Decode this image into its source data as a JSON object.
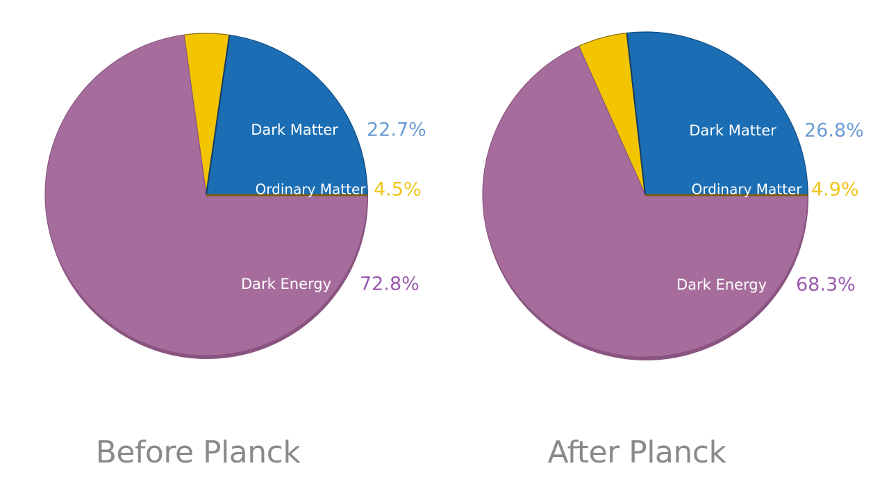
{
  "colors": {
    "dark_energy": "#A66D9C",
    "dark_energy_shadow": "#8A5480",
    "dark_matter": "#1C6EB4",
    "dark_matter_shadow": "#0F4A80",
    "ordinary_matter": "#F2C500",
    "ordinary_matter_shadow": "#8A6E10",
    "label_text": "#FFFFFF",
    "dark_matter_value": "#6A9BD6",
    "ordinary_matter_value": "#F0C419",
    "dark_energy_value": "#9A5AAE",
    "caption": "#8A8A8A"
  },
  "chart_data": [
    {
      "type": "pie",
      "caption": "Before Planck",
      "slices": [
        {
          "label": "Dark Matter",
          "value": 22.7,
          "value_text": "22.7%",
          "color_key": "dark_matter"
        },
        {
          "label": "Ordinary Matter",
          "value": 4.5,
          "value_text": "4.5%",
          "color_key": "ordinary_matter"
        },
        {
          "label": "Dark Energy",
          "value": 72.8,
          "value_text": "72.8%",
          "color_key": "dark_energy"
        }
      ]
    },
    {
      "type": "pie",
      "caption": "After Planck",
      "slices": [
        {
          "label": "Dark Matter",
          "value": 26.8,
          "value_text": "26.8%",
          "color_key": "dark_matter"
        },
        {
          "label": "Ordinary Matter",
          "value": 4.9,
          "value_text": "4.9%",
          "color_key": "ordinary_matter"
        },
        {
          "label": "Dark Energy",
          "value": 68.3,
          "value_text": "68.3%",
          "color_key": "dark_energy"
        }
      ]
    }
  ]
}
